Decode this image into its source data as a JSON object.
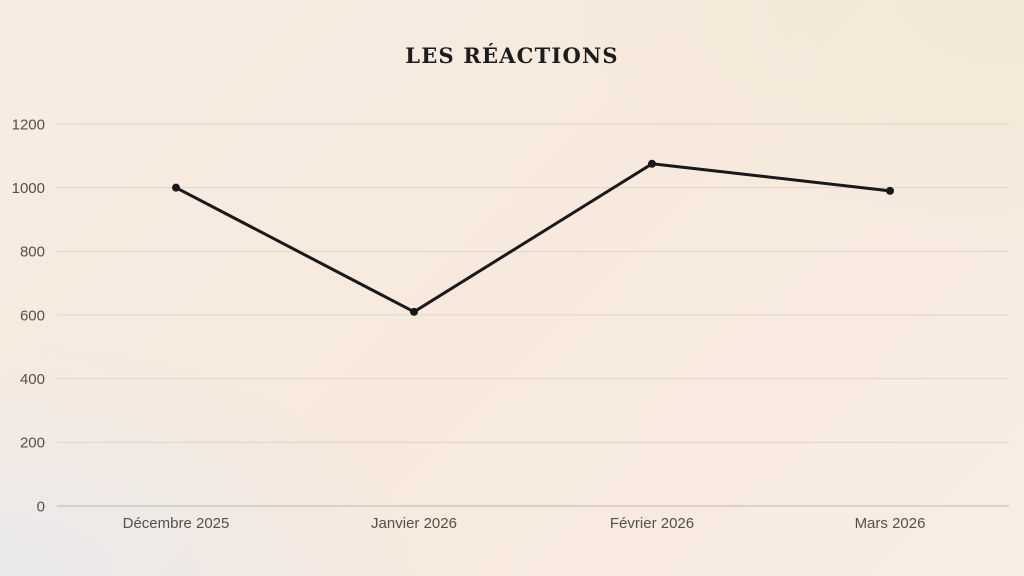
{
  "page": {
    "title": "LES RÉACTIONS"
  },
  "chart_data": {
    "type": "line",
    "title": "LES RÉACTIONS",
    "categories": [
      "Décembre 2025",
      "Janvier 2026",
      "Février 2026",
      "Mars 2026"
    ],
    "values": [
      1000,
      610,
      1075,
      990
    ],
    "xlabel": "",
    "ylabel": "",
    "ylim": [
      0,
      1200
    ],
    "yticks": [
      0,
      200,
      400,
      600,
      800,
      1000,
      1200
    ],
    "grid": true,
    "legend_position": "none"
  },
  "colors": {
    "line": "#191919",
    "point": "#191919",
    "title_text": "#1c1c1c",
    "axis_label_text": "#54504a",
    "gridline": "#ddd6ca",
    "zero_line": "#bcb7b0",
    "background_top_left": "#f7ece3",
    "background_top_right": "#f1e9d5",
    "background_bottom_left": "#e9e9eb",
    "background_bottom_right": "#f8ece4"
  }
}
